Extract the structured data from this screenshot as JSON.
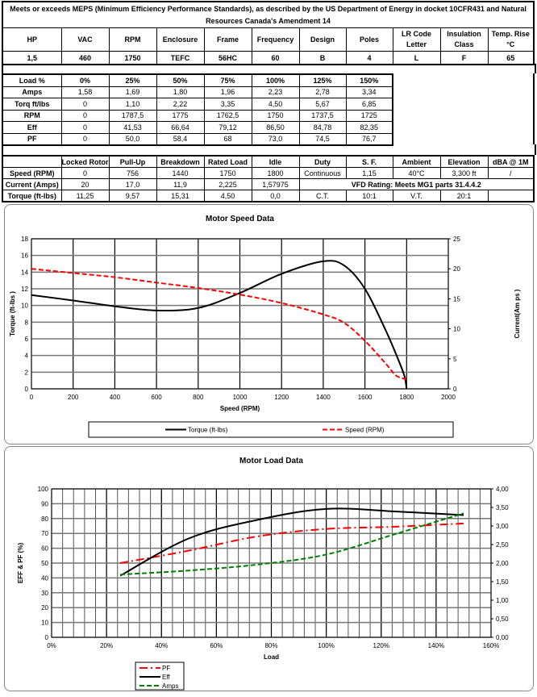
{
  "header": {
    "title": "Meets or exceeds MEPS (Minimum Efficiency Performance Standards), as described by the US Department of Energy in docket 10CFR431 and Natural Resources Canada's Amendment 14"
  },
  "specs": {
    "labels": [
      "HP",
      "VAC",
      "RPM",
      "Enclosure",
      "Frame",
      "Frequency",
      "Design",
      "Poles",
      "LR Code Letter",
      "Insulation Class",
      "Temp. Rise °C"
    ],
    "values": [
      "1,5",
      "460",
      "1750",
      "TEFC",
      "56HC",
      "60",
      "B",
      "4",
      "L",
      "F",
      "65"
    ]
  },
  "load_table": {
    "rows": [
      [
        "Load %",
        "0%",
        "25%",
        "50%",
        "75%",
        "100%",
        "125%",
        "150%"
      ],
      [
        "Amps",
        "1,58",
        "1,69",
        "1,80",
        "1,96",
        "2,23",
        "2,78",
        "3,34"
      ],
      [
        "Torq ft/lbs",
        "0",
        "1,10",
        "2,22",
        "3,35",
        "4,50",
        "5,67",
        "6,85"
      ],
      [
        "RPM",
        "0",
        "1787,5",
        "1775",
        "1762,5",
        "1750",
        "1737,5",
        "1725"
      ],
      [
        "Eff",
        "0",
        "41,53",
        "66,64",
        "79,12",
        "86,50",
        "84,78",
        "82,35"
      ],
      [
        "PF",
        "0",
        "50,0",
        "58,4",
        "68",
        "73,0",
        "74,5",
        "76,7"
      ]
    ]
  },
  "perf_table": {
    "headers": [
      "",
      "Locked Rotor",
      "Pull-Up",
      "Breakdown",
      "Rated Load",
      "Idle",
      "Duty",
      "S. F.",
      "Ambient",
      "Elevation",
      "dBA @ 1M"
    ],
    "speed": [
      "Speed (RPM)",
      "0",
      "756",
      "1440",
      "1750",
      "1800",
      "Continuous",
      "1,15",
      "40°C",
      "3,300 ft",
      "/"
    ],
    "current": [
      "Current (Amps)",
      "20",
      "17,0",
      "11,9",
      "2,225",
      "1,57975"
    ],
    "vfd": "VFD Rating: Meets MG1 parts 31.4.4.2",
    "torque": [
      "Torque (ft-lbs)",
      "11,25",
      "9,57",
      "15,31",
      "4,50",
      "0,0",
      "C.T.",
      "10:1",
      "V.T.",
      "20:1",
      ""
    ]
  },
  "chart_data": [
    {
      "type": "line",
      "title": "Motor Speed Data",
      "xlabel": "Speed (RPM)",
      "ylabel": "Torque (ft-lbs )",
      "y2label": "Current(Am ps )",
      "xlim": [
        0,
        2000
      ],
      "ylim": [
        0,
        18
      ],
      "y2lim": [
        0,
        25
      ],
      "xticks": [
        "0",
        "200",
        "400",
        "600",
        "800",
        "1000",
        "1200",
        "1400",
        "1600",
        "1800",
        "2000"
      ],
      "yticks": [
        "0",
        "2",
        "4",
        "6",
        "8",
        "10",
        "12",
        "14",
        "16",
        "18"
      ],
      "y2ticks": [
        "0",
        "5",
        "10",
        "15",
        "20",
        "25"
      ],
      "grid": true,
      "legend": "bottom",
      "series": [
        {
          "name": "Torque (ft-lbs)",
          "axis": "left",
          "color": "#000000",
          "dash": "solid",
          "x": [
            0,
            200,
            400,
            600,
            800,
            1000,
            1200,
            1400,
            1500,
            1600,
            1700,
            1760,
            1790,
            1800
          ],
          "y": [
            11.25,
            10.6,
            9.9,
            9.4,
            9.7,
            11.5,
            13.8,
            15.3,
            14.8,
            12,
            7,
            3.5,
            1.5,
            0
          ]
        },
        {
          "name": "Speed (RPM)",
          "axis": "right",
          "color": "#ff0000",
          "dash": "dashed",
          "x": [
            0,
            200,
            400,
            600,
            800,
            1000,
            1200,
            1400,
            1500,
            1600,
            1700,
            1750,
            1800
          ],
          "y": [
            20,
            19.3,
            18.6,
            17.7,
            16.8,
            15.7,
            14.3,
            12.4,
            11,
            8,
            4.2,
            2.2,
            1.6
          ]
        }
      ]
    },
    {
      "type": "line",
      "title": "Motor Load Data",
      "xlabel": "Load",
      "ylabel": "EFF & PF (%)",
      "xlim": [
        0,
        160
      ],
      "ylim": [
        0,
        100
      ],
      "y2lim": [
        0,
        4
      ],
      "xticks": [
        "0%",
        "20%",
        "40%",
        "60%",
        "80%",
        "100%",
        "120%",
        "140%",
        "160%"
      ],
      "yticks": [
        "0",
        "10",
        "20",
        "30",
        "40",
        "50",
        "60",
        "70",
        "80",
        "90",
        "100"
      ],
      "y2ticks": [
        "0,00",
        "0,50",
        "1,00",
        "1,50",
        "2,00",
        "2,50",
        "3,00",
        "3,50",
        "4,00"
      ],
      "grid": true,
      "legend": "bottom-left",
      "series": [
        {
          "name": "PF",
          "axis": "left",
          "color": "#ff0000",
          "dash": "dashdot",
          "x": [
            25,
            50,
            75,
            100,
            125,
            150
          ],
          "y": [
            50,
            58.4,
            68,
            73,
            74.5,
            76.7
          ]
        },
        {
          "name": "Eff",
          "axis": "left",
          "color": "#000000",
          "dash": "solid",
          "x": [
            25,
            50,
            75,
            100,
            125,
            150
          ],
          "y": [
            41.53,
            66.64,
            79.12,
            86.5,
            84.78,
            82.35
          ]
        },
        {
          "name": "Amps",
          "axis": "right",
          "color": "#008000",
          "dash": "dashed",
          "x": [
            25,
            50,
            75,
            100,
            125,
            150
          ],
          "y": [
            1.69,
            1.8,
            1.96,
            2.23,
            2.78,
            3.34
          ]
        }
      ]
    }
  ]
}
